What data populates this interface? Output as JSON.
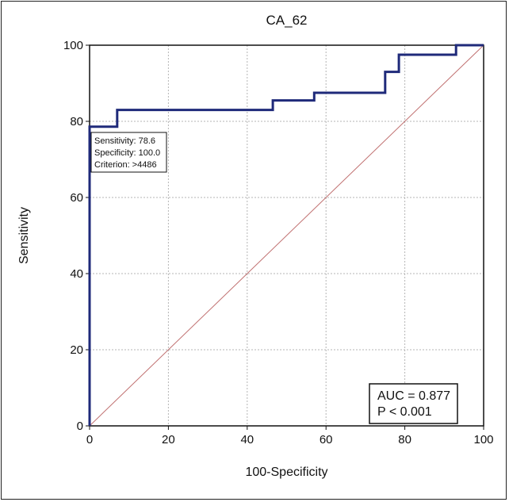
{
  "chart_data": {
    "type": "line",
    "title": "CA_62",
    "xlabel": "100-Specificity",
    "ylabel": "Sensitivity",
    "xlim": [
      0,
      100
    ],
    "ylim": [
      0,
      100
    ],
    "xticks": [
      "0",
      "20",
      "40",
      "60",
      "80",
      "100"
    ],
    "yticks": [
      "0",
      "20",
      "40",
      "60",
      "80",
      "100"
    ],
    "grid": true,
    "series": [
      {
        "color": "#1f2a7a",
        "x": [
          0,
          0,
          7,
          7,
          46.5,
          46.5,
          57,
          57,
          75,
          75,
          78.5,
          78.5,
          93,
          93,
          100
        ],
        "y": [
          0,
          78.6,
          78.6,
          83,
          83,
          85.5,
          85.5,
          87.5,
          87.5,
          93,
          93,
          97.5,
          97.5,
          100,
          100
        ]
      },
      {
        "color": "#c07070",
        "x": [
          0,
          100
        ],
        "y": [
          0,
          100
        ]
      }
    ],
    "annotation": {
      "lines": [
        "Sensitivity: 78.6",
        "Specificity: 100.0",
        "Criterion: >4486"
      ]
    },
    "stats": {
      "lines": [
        "AUC = 0.877",
        "P < 0.001"
      ]
    }
  }
}
